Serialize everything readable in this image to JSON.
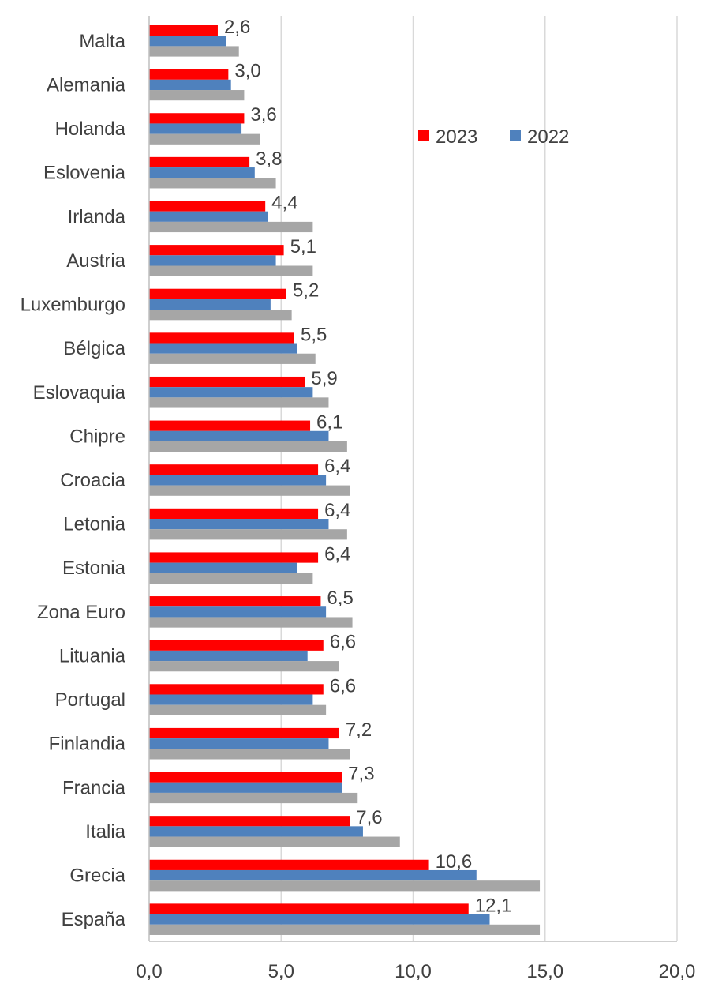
{
  "chart_data": {
    "type": "bar",
    "orientation": "horizontal",
    "categories": [
      "Malta",
      "Alemania",
      "Holanda",
      "Eslovenia",
      "Irlanda",
      "Austria",
      "Luxemburgo",
      "Bélgica",
      "Eslovaquia",
      "Chipre",
      "Croacia",
      "Letonia",
      "Estonia",
      "Zona Euro",
      "Lituania",
      "Portugal",
      "Finlandia",
      "Francia",
      "Italia",
      "Grecia",
      "España"
    ],
    "series": [
      {
        "name": "2023",
        "color": "#ff0000",
        "data_labels": true,
        "values": [
          2.6,
          3.0,
          3.6,
          3.8,
          4.4,
          5.1,
          5.2,
          5.5,
          5.9,
          6.1,
          6.4,
          6.4,
          6.4,
          6.5,
          6.6,
          6.6,
          7.2,
          7.3,
          7.6,
          10.6,
          12.1
        ]
      },
      {
        "name": "2022",
        "color": "#4f81bd",
        "data_labels": false,
        "values": [
          2.9,
          3.1,
          3.5,
          4.0,
          4.5,
          4.8,
          4.6,
          5.6,
          6.2,
          6.8,
          6.7,
          6.8,
          5.6,
          6.7,
          6.0,
          6.2,
          6.8,
          7.3,
          8.1,
          12.4,
          12.9
        ]
      },
      {
        "color": "#a6a6a6",
        "data_labels": false,
        "values": [
          3.4,
          3.6,
          4.2,
          4.8,
          6.2,
          6.2,
          5.4,
          6.3,
          6.8,
          7.5,
          7.6,
          7.5,
          6.2,
          7.7,
          7.2,
          6.7,
          7.6,
          7.9,
          9.5,
          14.8,
          14.8
        ]
      }
    ],
    "data_label_format": "comma-decimal-1",
    "x_ticks": [
      "0,0",
      "5,0",
      "10,0",
      "15,0",
      "20,0"
    ],
    "xlim": [
      0,
      20
    ],
    "grid": "vertical",
    "legend": {
      "placement": "top-right",
      "entries": [
        "2023",
        "2022"
      ]
    }
  }
}
